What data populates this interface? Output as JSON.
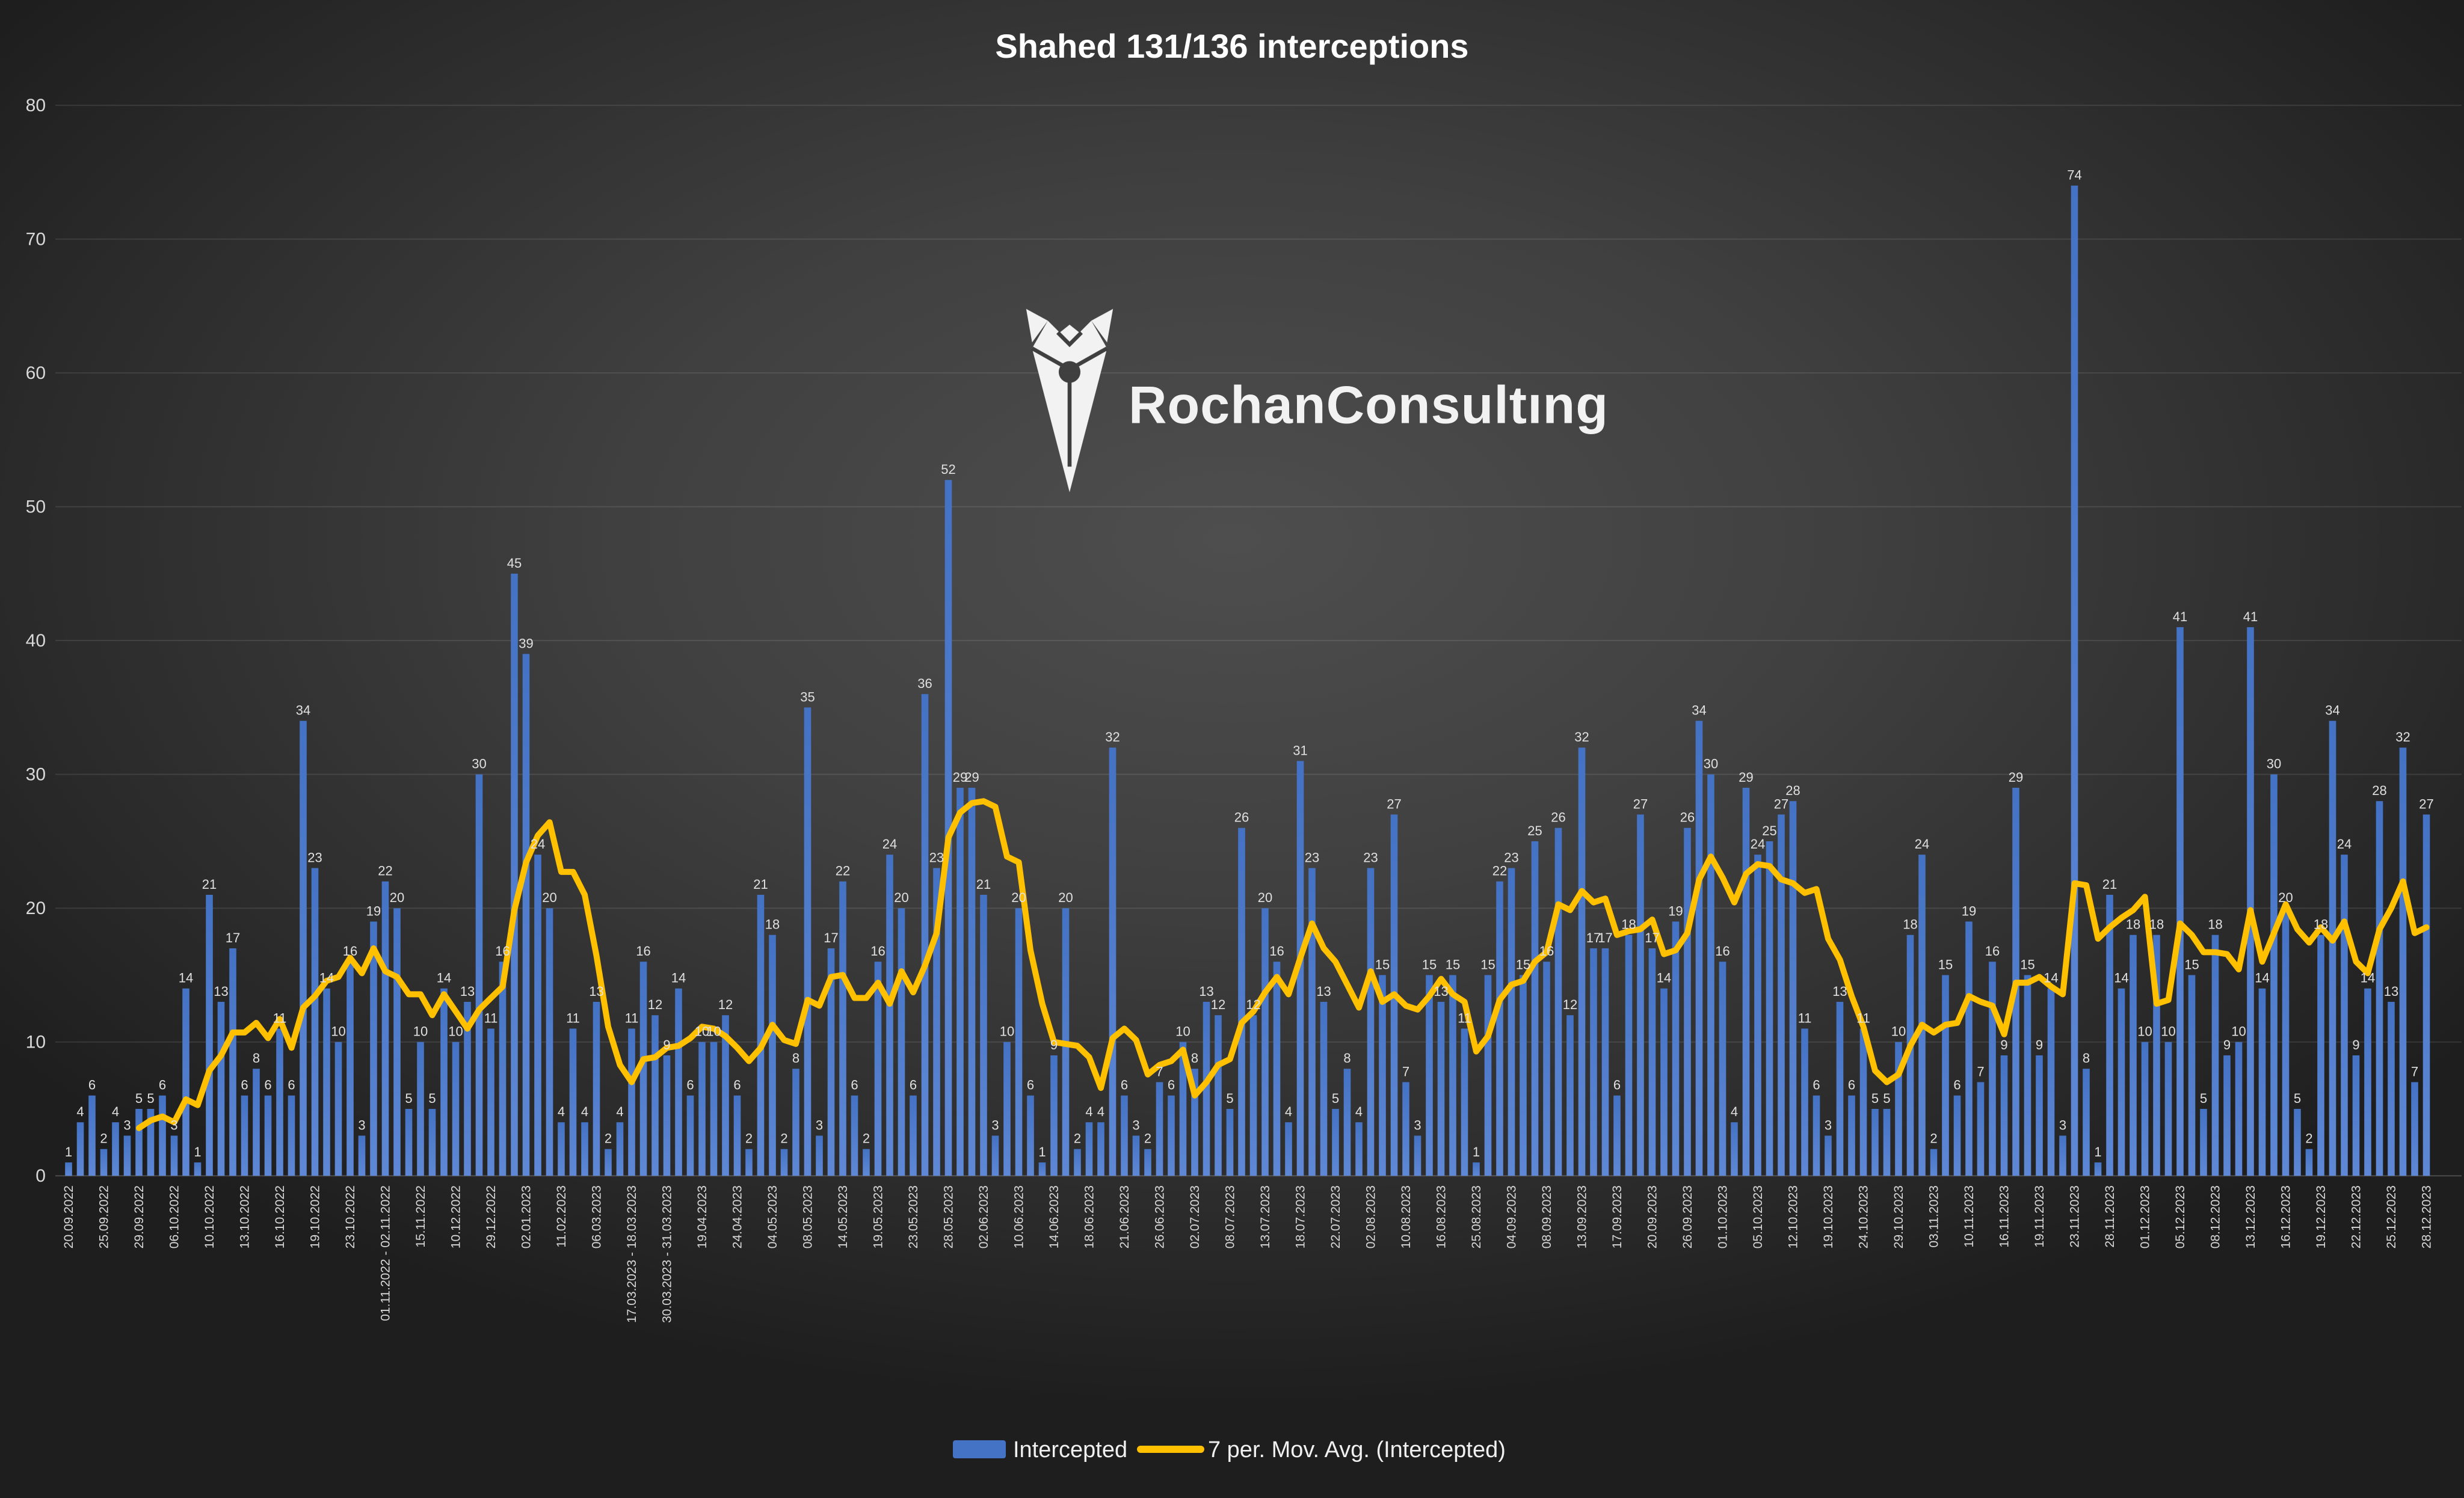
{
  "title": "Shahed 131/136 interceptions",
  "watermark": {
    "text": "RochanConsultıng"
  },
  "legend": {
    "intercepted_label": "Intercepted",
    "moving_avg_label": "7 per. Mov. Avg. (Intercepted)"
  },
  "colors": {
    "bar": "#4472C4",
    "bar_bottom": "#5E88D5",
    "line": "#FFC000",
    "label_text": "#E0E0E0",
    "axis_text": "#D9D9D9",
    "grid": "rgba(255,255,255,0.10)",
    "baseline": "rgba(255,255,255,0.20)",
    "background_center": "#4E4E4E",
    "background_edge": "#1E1E1E"
  },
  "chart_data": {
    "type": "bar",
    "title": "Shahed 131/136 interceptions",
    "ylabel": "",
    "xlabel": "",
    "ylim": [
      0,
      80
    ],
    "ytick_step": 10,
    "grid": true,
    "legend_position": "bottom",
    "bar_series_name": "Intercepted",
    "line_series_name": "7 per. Mov. Avg. (Intercepted)",
    "moving_average_window": 7,
    "x_label_interval": 3,
    "x_labels": [
      "20.09.2022",
      "25.09.2022",
      "29.09.2022",
      "06.10.2022",
      "10.10.2022",
      "13.10.2022",
      "16.10.2022",
      "19.10.2022",
      "23.10.2022",
      "01.11.2022 - 02.11.2022",
      "15.11.2022",
      "10.12.2022",
      "29.12.2022",
      "02.01.2023",
      "11.02.2023",
      "06.03.2023",
      "17.03.2023 - 18.03.2023",
      "30.03.2023 - 31.03.2023",
      "19.04.2023",
      "24.04.2023",
      "04.05.2023",
      "08.05.2023",
      "14.05.2023",
      "19.05.2023",
      "23.05.2023",
      "28.05.2023",
      "02.06.2023",
      "10.06.2023",
      "14.06.2023",
      "18.06.2023",
      "21.06.2023",
      "26.06.2023",
      "02.07.2023",
      "08.07.2023",
      "13.07.2023",
      "18.07.2023",
      "22.07.2023",
      "02.08.2023",
      "10.08.2023",
      "16.08.2023",
      "25.08.2023",
      "04.09.2023",
      "08.09.2023",
      "13.09.2023",
      "17.09.2023",
      "20.09.2023",
      "26.09.2023",
      "01.10.2023",
      "05.10.2023",
      "12.10.2023",
      "19.10.2023",
      "24.10.2023",
      "29.10.2023",
      "03.11.2023",
      "10.11.2023",
      "16.11.2023",
      "19.11.2023",
      "23.11.2023",
      "28.11.2023",
      "01.12.2023",
      "05.12.2023",
      "08.12.2023",
      "13.12.2023",
      "16.12.2023",
      "19.12.2023",
      "22.12.2023",
      "25.12.2023",
      "28.12.2023"
    ],
    "values": [
      1,
      4,
      6,
      2,
      4,
      3,
      5,
      5,
      6,
      3,
      14,
      1,
      21,
      13,
      17,
      6,
      8,
      6,
      11,
      6,
      34,
      23,
      14,
      10,
      16,
      3,
      19,
      22,
      20,
      5,
      10,
      5,
      14,
      10,
      13,
      30,
      11,
      16,
      45,
      39,
      24,
      20,
      4,
      11,
      4,
      13,
      2,
      4,
      11,
      16,
      12,
      9,
      14,
      6,
      10,
      10,
      12,
      6,
      2,
      21,
      18,
      2,
      8,
      35,
      3,
      17,
      22,
      6,
      2,
      16,
      24,
      20,
      6,
      36,
      23,
      52,
      29,
      29,
      21,
      3,
      10,
      20,
      6,
      1,
      9,
      20,
      2,
      4,
      4,
      32,
      6,
      3,
      2,
      7,
      6,
      10,
      8,
      13,
      12,
      5,
      26,
      12,
      20,
      16,
      4,
      31,
      23,
      13,
      5,
      8,
      4,
      23,
      15,
      27,
      7,
      3,
      15,
      13,
      15,
      11,
      1,
      15,
      22,
      23,
      15,
      25,
      16,
      26,
      12,
      32,
      17,
      17,
      6,
      18,
      27,
      17,
      14,
      19,
      26,
      34,
      30,
      16,
      4,
      29,
      24,
      25,
      27,
      28,
      11,
      6,
      3,
      13,
      6,
      11,
      5,
      5,
      10,
      18,
      24,
      2,
      15,
      6,
      19,
      7,
      16,
      9,
      29,
      15,
      9,
      14,
      3,
      74,
      8,
      1,
      21,
      14,
      18,
      10,
      18,
      10,
      41,
      15,
      5,
      18,
      9,
      10,
      41,
      14,
      30,
      20,
      5,
      2,
      18,
      34,
      24,
      9,
      14,
      28,
      13,
      32,
      7,
      27
    ]
  },
  "y_axis_ticks": [
    "0",
    "10",
    "20",
    "30",
    "40",
    "50",
    "60",
    "70",
    "80"
  ]
}
